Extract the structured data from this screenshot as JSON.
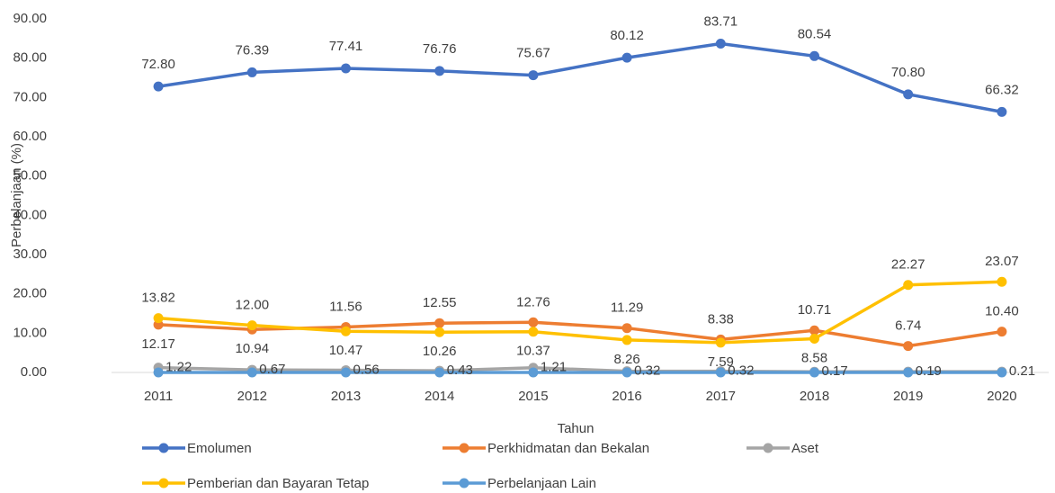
{
  "chart_data": {
    "type": "line",
    "x_label": "Tahun",
    "y_label": "Perbelanjaan (%)",
    "categories": [
      "2011",
      "2012",
      "2013",
      "2014",
      "2015",
      "2016",
      "2017",
      "2018",
      "2019",
      "2020"
    ],
    "ylim": [
      0,
      90
    ],
    "yticks": [
      {
        "value": 0,
        "label": "0.00"
      },
      {
        "value": 10,
        "label": "10.00"
      },
      {
        "value": 20,
        "label": "20.00"
      },
      {
        "value": 30,
        "label": "30.00"
      },
      {
        "value": 40,
        "label": "40.00"
      },
      {
        "value": 50,
        "label": "50.00"
      },
      {
        "value": 60,
        "label": "60.00"
      },
      {
        "value": 70,
        "label": "70.00"
      },
      {
        "value": 80,
        "label": "80.00"
      },
      {
        "value": 90,
        "label": "90.00"
      }
    ],
    "grid": false,
    "legend": "bottom",
    "series": [
      {
        "name": "Emolumen",
        "color": "#4472c4",
        "values": [
          72.8,
          76.39,
          77.41,
          76.76,
          75.67,
          80.12,
          83.71,
          80.54,
          70.8,
          66.32
        ],
        "value_labels": [
          "72.80",
          "76.39",
          "77.41",
          "76.76",
          "75.67",
          "80.12",
          "83.71",
          "80.54",
          "70.80",
          "66.32"
        ]
      },
      {
        "name": "Perkhidmatan dan Bekalan",
        "color": "#ed7d31",
        "values": [
          12.17,
          10.94,
          11.56,
          12.55,
          12.76,
          11.29,
          8.38,
          10.71,
          6.74,
          10.4
        ],
        "value_labels": [
          "12.17",
          "10.94",
          "11.56",
          "12.55",
          "12.76",
          "11.29",
          "8.38",
          "10.71",
          "6.74",
          "10.40"
        ]
      },
      {
        "name": "Aset",
        "color": "#a5a5a5",
        "values": [
          1.22,
          0.67,
          0.56,
          0.43,
          1.21,
          0.32,
          0.32,
          0.17,
          0.19,
          0.21
        ],
        "value_labels": [
          "1.22",
          "0.67",
          "0.56",
          "0.43",
          "1.21",
          "0.32",
          "0.32",
          "0.17",
          "0.19",
          "0.21"
        ]
      },
      {
        "name": "Pemberian dan Bayaran Tetap",
        "color": "#ffc000",
        "values": [
          13.82,
          12.0,
          10.47,
          10.26,
          10.37,
          8.26,
          7.59,
          8.58,
          22.27,
          23.07
        ],
        "value_labels": [
          "13.82",
          "12.00",
          "10.47",
          "10.26",
          "10.37",
          "8.26",
          "7.59",
          "8.58",
          "22.27",
          "23.07"
        ]
      },
      {
        "name": "Perbelanjaan Lain",
        "color": "#5b9bd5",
        "values": [
          0,
          0,
          0,
          0,
          0,
          0,
          0,
          0,
          0,
          0
        ]
      }
    ]
  }
}
